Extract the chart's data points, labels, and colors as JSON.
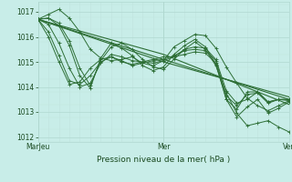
{
  "xlabel": "Pression niveau de la mer( hPa )",
  "background_color": "#c8ede8",
  "grid_color_major": "#b0d8d0",
  "grid_color_minor": "#c0e4de",
  "line_color": "#2d6e35",
  "ylim": [
    1011.8,
    1017.4
  ],
  "yticks": [
    1012,
    1013,
    1014,
    1015,
    1016,
    1017
  ],
  "xlim": [
    0,
    96
  ],
  "xtick_positions": [
    0,
    48,
    96
  ],
  "xtick_labels": [
    "MarJeu",
    "Mer",
    "Ven"
  ],
  "line_data": [
    [
      0,
      1016.7,
      4,
      1016.9,
      8,
      1017.1,
      12,
      1016.75,
      16,
      1016.2,
      20,
      1015.5,
      24,
      1015.15,
      28,
      1015.05,
      32,
      1015.1,
      36,
      1015.2,
      40,
      1014.95,
      44,
      1014.85,
      48,
      1015.05,
      52,
      1015.6,
      56,
      1015.85,
      60,
      1016.1,
      64,
      1016.05,
      68,
      1015.55,
      72,
      1014.8,
      76,
      1014.15,
      80,
      1013.55,
      84,
      1013.25,
      88,
      1013.05,
      92,
      1013.25,
      96,
      1013.45
    ],
    [
      0,
      1016.7,
      4,
      1016.75,
      8,
      1016.55,
      12,
      1015.85,
      16,
      1014.75,
      20,
      1014.05,
      24,
      1015.05,
      28,
      1015.6,
      32,
      1015.75,
      36,
      1015.5,
      40,
      1015.1,
      44,
      1014.8,
      48,
      1014.7,
      52,
      1015.1,
      56,
      1015.5,
      60,
      1015.8,
      64,
      1015.5,
      68,
      1014.85,
      72,
      1013.75,
      76,
      1012.95,
      80,
      1012.45,
      84,
      1012.55,
      88,
      1012.65,
      92,
      1012.4,
      96,
      1012.2
    ],
    [
      0,
      1016.7,
      4,
      1016.75,
      8,
      1016.45,
      12,
      1015.65,
      16,
      1014.45,
      20,
      1013.95,
      24,
      1015.15,
      28,
      1015.75,
      32,
      1015.55,
      36,
      1015.25,
      40,
      1014.85,
      44,
      1014.65,
      48,
      1014.8,
      52,
      1015.3,
      56,
      1015.65,
      60,
      1015.9,
      64,
      1015.6,
      68,
      1014.9,
      72,
      1013.5,
      76,
      1012.8,
      80,
      1013.2,
      84,
      1013.5,
      88,
      1012.95,
      92,
      1013.15,
      96,
      1013.4
    ],
    [
      0,
      1016.7,
      4,
      1016.5,
      8,
      1015.75,
      12,
      1014.75,
      16,
      1014.0,
      20,
      1014.15,
      24,
      1014.95,
      28,
      1015.3,
      32,
      1015.2,
      36,
      1015.05,
      40,
      1015.0,
      44,
      1014.95,
      48,
      1015.05,
      52,
      1015.2,
      56,
      1015.5,
      60,
      1015.6,
      64,
      1015.55,
      68,
      1015.1,
      72,
      1013.85,
      76,
      1013.35,
      80,
      1013.5,
      84,
      1013.8,
      88,
      1013.4,
      92,
      1013.5,
      96,
      1013.45
    ],
    [
      0,
      1016.7,
      4,
      1016.2,
      8,
      1015.25,
      12,
      1014.25,
      16,
      1014.1,
      20,
      1014.45,
      24,
      1015.0,
      28,
      1015.2,
      32,
      1015.05,
      36,
      1014.85,
      40,
      1014.95,
      44,
      1015.05,
      48,
      1015.1,
      52,
      1015.25,
      56,
      1015.45,
      60,
      1015.5,
      64,
      1015.45,
      68,
      1015.05,
      72,
      1013.65,
      76,
      1013.25,
      80,
      1013.7,
      84,
      1013.75,
      88,
      1013.35,
      92,
      1013.5,
      96,
      1013.5
    ],
    [
      0,
      1016.7,
      4,
      1016.0,
      8,
      1015.0,
      12,
      1014.1,
      16,
      1014.2,
      20,
      1014.75,
      24,
      1015.1,
      28,
      1015.2,
      32,
      1015.0,
      36,
      1014.9,
      40,
      1015.0,
      44,
      1015.1,
      48,
      1015.2,
      52,
      1015.2,
      56,
      1015.3,
      60,
      1015.4,
      64,
      1015.35,
      68,
      1014.95,
      72,
      1013.5,
      76,
      1013.1,
      80,
      1013.8,
      84,
      1013.8,
      88,
      1013.4,
      92,
      1013.5,
      96,
      1013.5
    ],
    [
      0,
      1016.7,
      48,
      1015.1,
      96,
      1013.5
    ],
    [
      0,
      1016.7,
      48,
      1015.3,
      96,
      1013.3
    ],
    [
      0,
      1016.7,
      48,
      1015.0,
      96,
      1013.6
    ]
  ]
}
